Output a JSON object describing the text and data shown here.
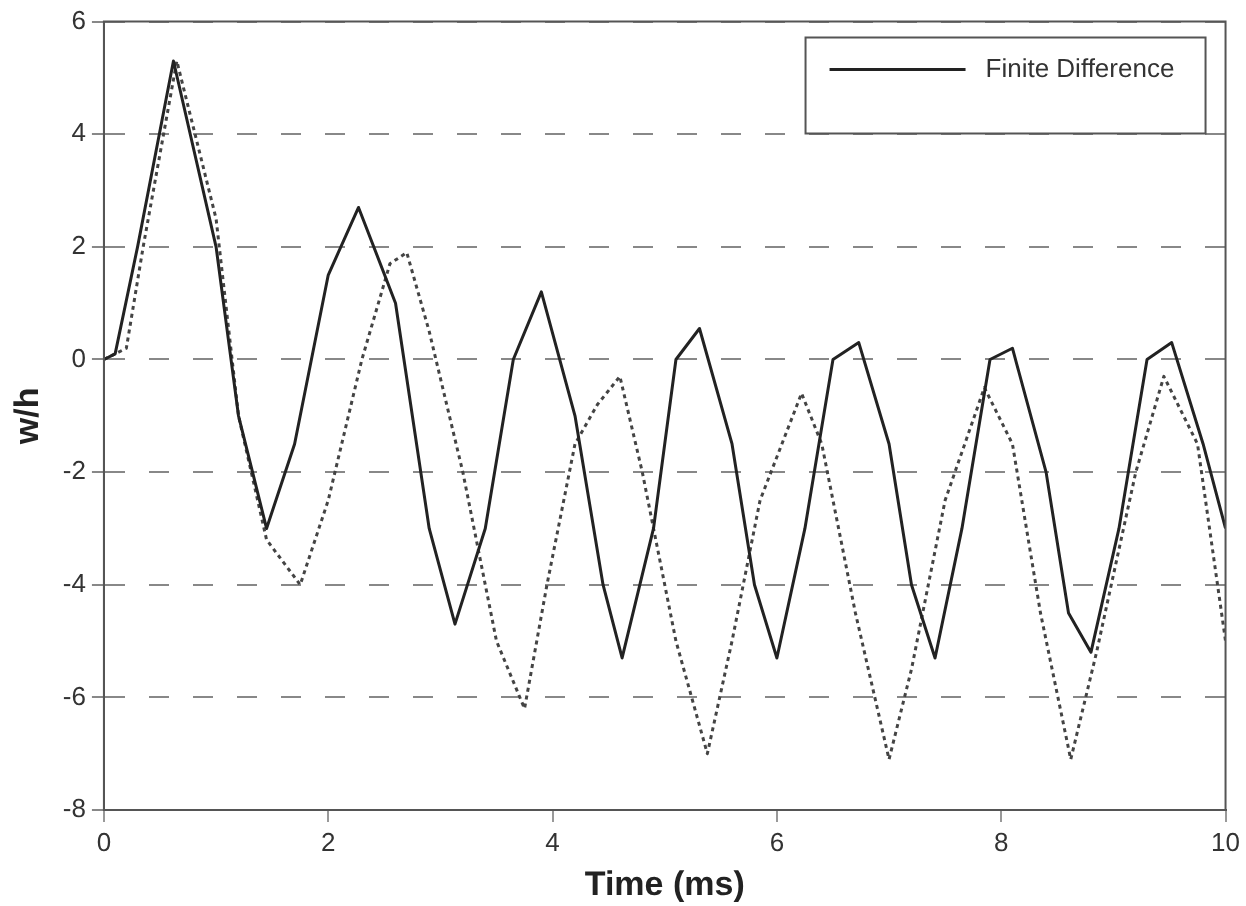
{
  "chart_data": {
    "type": "line",
    "xlabel": "Time (ms)",
    "ylabel": "w/h",
    "xlim": [
      0,
      10
    ],
    "xticks": [
      0,
      2,
      4,
      6,
      8,
      10
    ],
    "ylim": [
      -8,
      6
    ],
    "yticks": [
      -8,
      -6,
      -4,
      -2,
      0,
      2,
      4,
      6
    ],
    "grid": "y",
    "legend": "top right",
    "marker": "none",
    "series": [
      {
        "name": "Finite Difference",
        "color": "#222222",
        "line_style": "solid",
        "x": [
          0,
          0.1,
          0.3,
          0.62,
          1,
          1.2,
          1.45,
          1.7,
          2,
          2.27,
          2.6,
          2.9,
          3.13,
          3.4,
          3.65,
          3.9,
          4.2,
          4.45,
          4.62,
          4.9,
          5.1,
          5.31,
          5.6,
          5.8,
          6.0,
          6.25,
          6.5,
          6.73,
          7,
          7.2,
          7.41,
          7.65,
          7.9,
          8.1,
          8.4,
          8.6,
          8.8,
          9.05,
          9.3,
          9.52,
          9.8,
          10
        ],
        "values": [
          0,
          0.1,
          2,
          5.3,
          2,
          -1,
          -3,
          -1.5,
          1.5,
          2.7,
          1,
          -3,
          -4.7,
          -3,
          0,
          1.2,
          -1,
          -4,
          -5.3,
          -3,
          0,
          0.55,
          -1.5,
          -4,
          -5.3,
          -3,
          0,
          0.3,
          -1.5,
          -4,
          -5.3,
          -3,
          0,
          0.2,
          -2,
          -4.5,
          -5.2,
          -3,
          0,
          0.3,
          -1.5,
          -3
        ]
      },
      {
        "color": "#444444",
        "line_style": "dotted",
        "x": [
          0,
          0.2,
          0.35,
          0.65,
          1,
          1.2,
          1.45,
          1.75,
          2,
          2.3,
          2.55,
          2.7,
          2.9,
          3.2,
          3.5,
          3.75,
          3.95,
          4.2,
          4.4,
          4.6,
          4.8,
          5.1,
          5.38,
          5.6,
          5.85,
          6.22,
          6.4,
          6.7,
          7.0,
          7.2,
          7.5,
          7.85,
          8.1,
          8.35,
          8.62,
          8.85,
          9.2,
          9.45,
          9.75,
          10
        ],
        "values": [
          0,
          0.2,
          2,
          5.3,
          2.5,
          -1,
          -3.2,
          -4,
          -2.5,
          0,
          1.7,
          1.9,
          0.5,
          -2,
          -5,
          -6.2,
          -4,
          -1.5,
          -0.8,
          -0.3,
          -2,
          -5,
          -7,
          -5,
          -2.5,
          -0.6,
          -1.5,
          -4.5,
          -7.1,
          -5.5,
          -2.5,
          -0.5,
          -1.5,
          -4.5,
          -7.1,
          -5.2,
          -2,
          -0.3,
          -1.5,
          -5
        ]
      }
    ]
  }
}
